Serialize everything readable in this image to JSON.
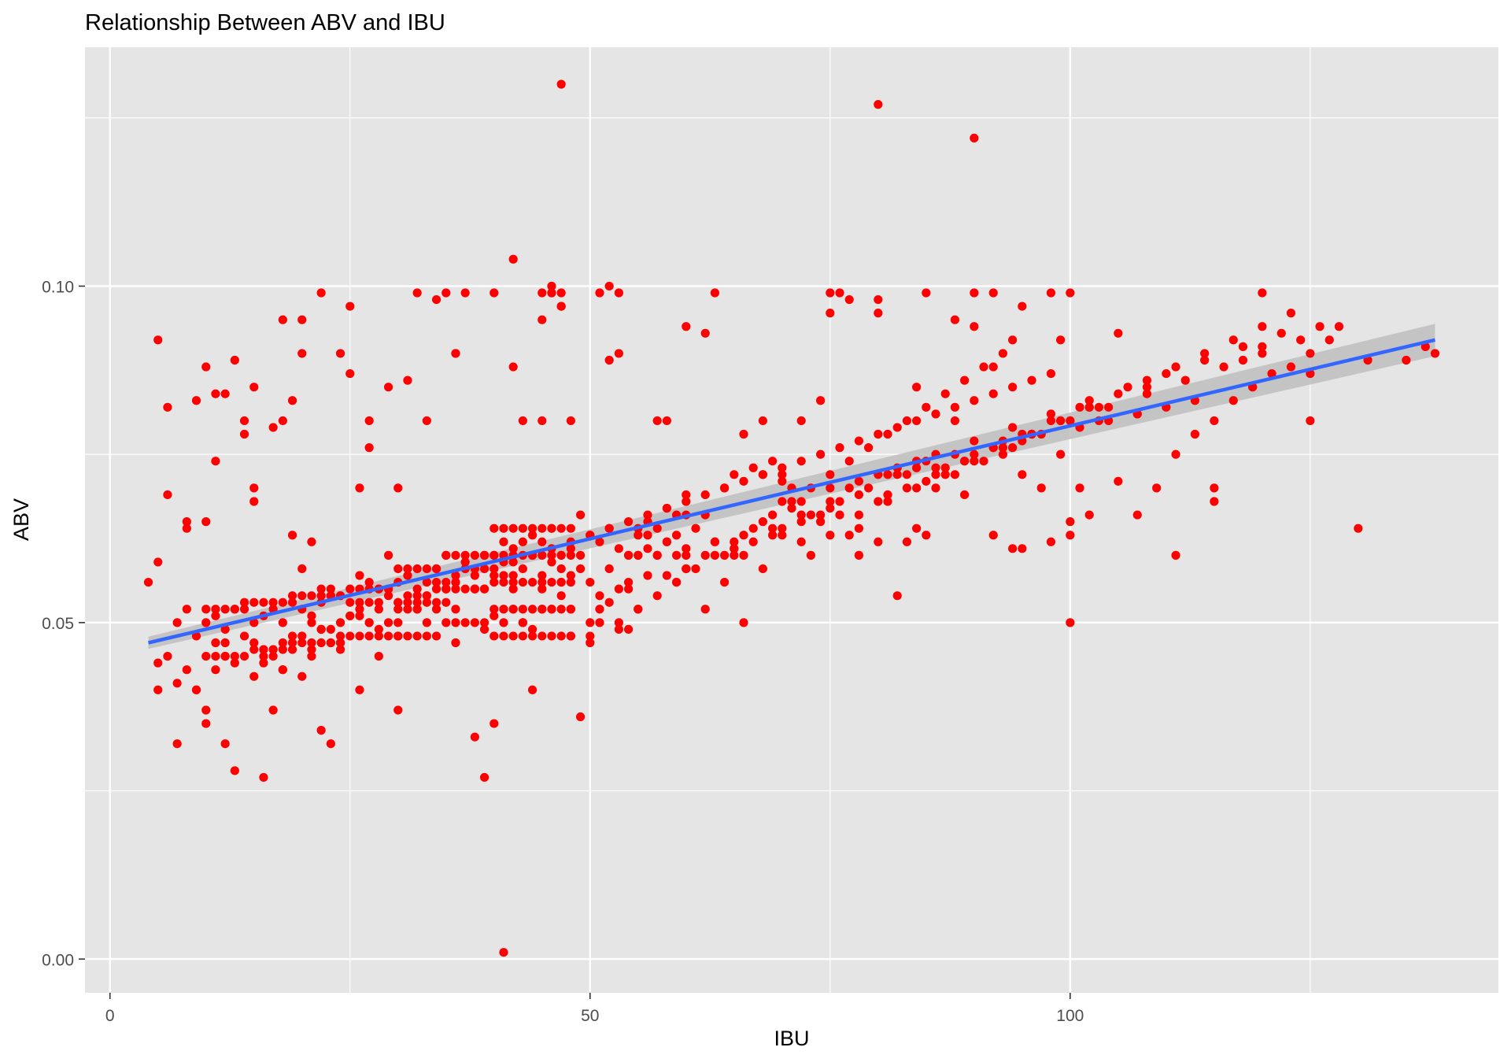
{
  "chart_data": {
    "type": "scatter",
    "title": "Relationship Between ABV and IBU",
    "xlabel": "IBU",
    "ylabel": "ABV",
    "xlim": [
      -2.6,
      144.6
    ],
    "ylim": [
      -0.005,
      0.1355
    ],
    "x_ticks": [
      0,
      50,
      100
    ],
    "x_tick_labels": [
      "0",
      "50",
      "100"
    ],
    "y_ticks": [
      0.0,
      0.05,
      0.1
    ],
    "y_tick_labels": [
      "0.00",
      "0.05",
      "0.10"
    ],
    "grid": true,
    "legend": "none",
    "colors": {
      "panel_bg": "#e5e5e5",
      "grid": "#ffffff",
      "points": "#ff0000",
      "trend_line": "#3366ff",
      "confidence_band": "#bebebe"
    },
    "trend_line": {
      "method": "lm",
      "x": [
        4,
        138
      ],
      "y": [
        0.047,
        0.092
      ],
      "ci_halfwidth": [
        0.0009,
        0.0024
      ]
    },
    "points": {
      "x": [
        4,
        5,
        5,
        5,
        6,
        7,
        8,
        9,
        10,
        10,
        11,
        11,
        12,
        13,
        14,
        15,
        15,
        16,
        17,
        18,
        18,
        19,
        19,
        20,
        20,
        21,
        22,
        22,
        23,
        24,
        25,
        25,
        26,
        26,
        27,
        27,
        28,
        29,
        30,
        30,
        31,
        32,
        33,
        34,
        35,
        35,
        36,
        36,
        37,
        38,
        38,
        39,
        40,
        40,
        41,
        42,
        42,
        43,
        43,
        44,
        45,
        45,
        46,
        46,
        47,
        47,
        47,
        48,
        49,
        50,
        50,
        51,
        52,
        53,
        54,
        55,
        55,
        56,
        57,
        58,
        59,
        60,
        60,
        62,
        63,
        64,
        65,
        66,
        67,
        68,
        69,
        70,
        70,
        72,
        73,
        74,
        75,
        75,
        76,
        78,
        80,
        80,
        81,
        82,
        83,
        84,
        85,
        85,
        86,
        88,
        89,
        90,
        90,
        92,
        93,
        94,
        95,
        98,
        99,
        100,
        100,
        100,
        102,
        105,
        108,
        110,
        111,
        115,
        115,
        118,
        120,
        120,
        125,
        130,
        135,
        138,
        5,
        6,
        7,
        8,
        9,
        10,
        11,
        12,
        13,
        14,
        15,
        16,
        17,
        18,
        19,
        20,
        21,
        22,
        23,
        24,
        25,
        26,
        27,
        28,
        29,
        30,
        31,
        32,
        33,
        34,
        35,
        36,
        37,
        38,
        39,
        40,
        41,
        42,
        43,
        44,
        45,
        46,
        47,
        48,
        49,
        50,
        51,
        52,
        53,
        54,
        55,
        56,
        57,
        58,
        59,
        60,
        8,
        10,
        12,
        14,
        16,
        18,
        20,
        22,
        24,
        26,
        28,
        30,
        32,
        34,
        36,
        38,
        40,
        42,
        44,
        46,
        48,
        50,
        52,
        54,
        56,
        58,
        60,
        62,
        64,
        66,
        68,
        70,
        72,
        74,
        76,
        78,
        80,
        82,
        84,
        86,
        88,
        90,
        92,
        94,
        96,
        98,
        10,
        13,
        16,
        19,
        22,
        25,
        28,
        31,
        34,
        37,
        40,
        43,
        46,
        49,
        52,
        55,
        58,
        61,
        64,
        67,
        70,
        73,
        76,
        79,
        82,
        85,
        88,
        91,
        94,
        97,
        100,
        103,
        12,
        15,
        18,
        21,
        24,
        27,
        30,
        33,
        36,
        39,
        42,
        45,
        48,
        51,
        54,
        57,
        60,
        63,
        66,
        69,
        72,
        75,
        78,
        81,
        84,
        87,
        90,
        93,
        96,
        99,
        102,
        14,
        17,
        20,
        23,
        26,
        29,
        32,
        35,
        38,
        41,
        44,
        47,
        50,
        53,
        56,
        59,
        62,
        65,
        68,
        71,
        74,
        77,
        80,
        83,
        86,
        89,
        92,
        95,
        98,
        101,
        104,
        107,
        9,
        11,
        13,
        15,
        17,
        19,
        21,
        23,
        25,
        27,
        29,
        31,
        33,
        35,
        37,
        39,
        41,
        43,
        45,
        47,
        49,
        51,
        53,
        55,
        57,
        59,
        61,
        63,
        65,
        67,
        69,
        71,
        73,
        75,
        77,
        79,
        81,
        83,
        85,
        87,
        89,
        91,
        93,
        95,
        97,
        99,
        101,
        103,
        105,
        107,
        109,
        111,
        113,
        115,
        117,
        119,
        121,
        123,
        125,
        127,
        7,
        8,
        9,
        12,
        15,
        18,
        21,
        24,
        27,
        30,
        33,
        36,
        39,
        42,
        45,
        48,
        51,
        54,
        57,
        60,
        63,
        66,
        69,
        72,
        75,
        78,
        81,
        84,
        87,
        90,
        93,
        96,
        99,
        102,
        105,
        108,
        111,
        114,
        117,
        120,
        123,
        126,
        16,
        20,
        24,
        28,
        32,
        36,
        40,
        44,
        48,
        52,
        56,
        60,
        64,
        68,
        72,
        76,
        80,
        84,
        88,
        92,
        96,
        100,
        104,
        108,
        112,
        116,
        120,
        124,
        128,
        6,
        11,
        17,
        23,
        29,
        35,
        41,
        47,
        53,
        59,
        65,
        71,
        77,
        83,
        89,
        95,
        101,
        107,
        113,
        119,
        125,
        131,
        137,
        22,
        26,
        30,
        34,
        38,
        42,
        46,
        50,
        54,
        58,
        62,
        66,
        70,
        74,
        78,
        82,
        86,
        90,
        94,
        98,
        102,
        106,
        110,
        114,
        118,
        122,
        40,
        41,
        42,
        43,
        44,
        45,
        46,
        47,
        48,
        40,
        41,
        42,
        43,
        44,
        45,
        46,
        47,
        48,
        40,
        41,
        42,
        43,
        44,
        45,
        46,
        47,
        48,
        40,
        41,
        42,
        43,
        44,
        45,
        46,
        47,
        48,
        40,
        41,
        42,
        43,
        44,
        45,
        46,
        47,
        48,
        35,
        36,
        37,
        38,
        39,
        35,
        36,
        37,
        38,
        39,
        35,
        36,
        37,
        38,
        39,
        30,
        31,
        32,
        33,
        34,
        30,
        31,
        32,
        33,
        34,
        30,
        31,
        32,
        33,
        34,
        25,
        26,
        27,
        28,
        29,
        25,
        26,
        27,
        28,
        29,
        20,
        21,
        22,
        23,
        24,
        20,
        21,
        22,
        23,
        24,
        15,
        16,
        17,
        18,
        19,
        15,
        16,
        17,
        18,
        19,
        10,
        11,
        12,
        13,
        14,
        10,
        11,
        12,
        13,
        14,
        47,
        46,
        45,
        52,
        53,
        75,
        77,
        80,
        85,
        88,
        90,
        92,
        65,
        70,
        60,
        75,
        78,
        80,
        72,
        68,
        62,
        58,
        55,
        100,
        98,
        92,
        95,
        94,
        86,
        84
      ],
      "y": [
        0.056,
        0.044,
        0.04,
        0.092,
        0.069,
        0.032,
        0.065,
        0.04,
        0.037,
        0.035,
        0.047,
        0.074,
        0.032,
        0.028,
        0.078,
        0.068,
        0.07,
        0.027,
        0.037,
        0.095,
        0.08,
        0.083,
        0.063,
        0.09,
        0.095,
        0.062,
        0.099,
        0.034,
        0.032,
        0.09,
        0.087,
        0.097,
        0.04,
        0.07,
        0.08,
        0.076,
        0.045,
        0.085,
        0.07,
        0.037,
        0.086,
        0.099,
        0.08,
        0.098,
        0.099,
        0.06,
        0.09,
        0.09,
        0.099,
        0.055,
        0.033,
        0.027,
        0.099,
        0.035,
        0.001,
        0.104,
        0.088,
        0.05,
        0.08,
        0.04,
        0.099,
        0.095,
        0.099,
        0.1,
        0.097,
        0.097,
        0.099,
        0.08,
        0.036,
        0.05,
        0.047,
        0.099,
        0.089,
        0.09,
        0.049,
        0.052,
        0.06,
        0.061,
        0.08,
        0.08,
        0.066,
        0.094,
        0.061,
        0.093,
        0.099,
        0.07,
        0.061,
        0.078,
        0.073,
        0.08,
        0.074,
        0.063,
        0.071,
        0.08,
        0.06,
        0.083,
        0.096,
        0.067,
        0.099,
        0.06,
        0.098,
        0.096,
        0.069,
        0.054,
        0.062,
        0.064,
        0.063,
        0.071,
        0.07,
        0.08,
        0.069,
        0.094,
        0.099,
        0.088,
        0.075,
        0.092,
        0.097,
        0.099,
        0.092,
        0.099,
        0.05,
        0.063,
        0.066,
        0.093,
        0.085,
        0.082,
        0.06,
        0.07,
        0.068,
        0.089,
        0.091,
        0.099,
        0.08,
        0.064,
        0.089,
        0.09,
        0.059,
        0.082,
        0.05,
        0.052,
        0.048,
        0.05,
        0.051,
        0.049,
        0.052,
        0.053,
        0.05,
        0.051,
        0.052,
        0.05,
        0.054,
        0.052,
        0.051,
        0.053,
        0.055,
        0.054,
        0.053,
        0.052,
        0.056,
        0.055,
        0.054,
        0.056,
        0.057,
        0.055,
        0.056,
        0.058,
        0.055,
        0.057,
        0.059,
        0.058,
        0.06,
        0.057,
        0.059,
        0.061,
        0.058,
        0.06,
        0.062,
        0.059,
        0.058,
        0.061,
        0.06,
        0.063,
        0.062,
        0.064,
        0.061,
        0.06,
        0.063,
        0.065,
        0.064,
        0.062,
        0.063,
        0.066,
        0.064,
        0.065,
        0.047,
        0.048,
        0.046,
        0.047,
        0.048,
        0.049,
        0.05,
        0.051,
        0.052,
        0.053,
        0.054,
        0.055,
        0.056,
        0.057,
        0.058,
        0.059,
        0.06,
        0.061,
        0.062,
        0.063,
        0.064,
        0.065,
        0.066,
        0.067,
        0.068,
        0.069,
        0.07,
        0.071,
        0.072,
        0.073,
        0.074,
        0.075,
        0.076,
        0.077,
        0.078,
        0.079,
        0.08,
        0.081,
        0.082,
        0.083,
        0.084,
        0.085,
        0.086,
        0.087,
        0.088,
        0.089,
        0.045,
        0.047,
        0.049,
        0.051,
        0.053,
        0.054,
        0.056,
        0.058,
        0.06,
        0.062,
        0.064,
        0.066,
        0.058,
        0.06,
        0.062,
        0.064,
        0.06,
        0.062,
        0.064,
        0.066,
        0.068,
        0.07,
        0.072,
        0.074,
        0.072,
        0.074,
        0.076,
        0.078,
        0.08,
        0.082,
        0.084,
        0.085,
        0.043,
        0.045,
        0.048,
        0.05,
        0.052,
        0.054,
        0.056,
        0.058,
        0.055,
        0.057,
        0.052,
        0.054,
        0.055,
        0.06,
        0.06,
        0.062,
        0.05,
        0.064,
        0.068,
        0.07,
        0.071,
        0.072,
        0.074,
        0.073,
        0.075,
        0.077,
        0.078,
        0.08,
        0.082,
        0.08,
        0.079,
        0.058,
        0.054,
        0.057,
        0.06,
        0.052,
        0.055,
        0.058,
        0.062,
        0.063,
        0.056,
        0.048,
        0.05,
        0.063,
        0.06,
        0.052,
        0.06,
        0.065,
        0.07,
        0.066,
        0.063,
        0.068,
        0.07,
        0.072,
        0.074,
        0.076,
        0.078,
        0.08,
        0.082,
        0.08,
        0.081,
        0.083,
        0.084,
        0.044,
        0.042,
        0.046,
        0.048,
        0.05,
        0.049,
        0.051,
        0.053,
        0.055,
        0.052,
        0.054,
        0.056,
        0.058,
        0.055,
        0.057,
        0.05,
        0.052,
        0.06,
        0.058,
        0.05,
        0.049,
        0.052,
        0.054,
        0.056,
        0.058,
        0.06,
        0.062,
        0.064,
        0.066,
        0.068,
        0.07,
        0.072,
        0.074,
        0.076,
        0.078,
        0.08,
        0.082,
        0.084,
        0.086,
        0.088,
        0.09,
        0.072,
        0.07,
        0.075,
        0.07,
        0.08,
        0.071,
        0.066,
        0.07,
        0.075,
        0.078,
        0.08,
        0.083,
        0.085,
        0.087,
        0.088,
        0.09,
        0.092,
        0.041,
        0.043,
        0.04,
        0.045,
        0.047,
        0.043,
        0.046,
        0.047,
        0.05,
        0.048,
        0.05,
        0.052,
        0.049,
        0.052,
        0.055,
        0.057,
        0.052,
        0.056,
        0.06,
        0.058,
        0.062,
        0.06,
        0.063,
        0.066,
        0.068,
        0.066,
        0.068,
        0.07,
        0.072,
        0.074,
        0.076,
        0.078,
        0.08,
        0.082,
        0.084,
        0.086,
        0.088,
        0.09,
        0.092,
        0.094,
        0.096,
        0.094,
        0.044,
        0.042,
        0.046,
        0.049,
        0.052,
        0.047,
        0.051,
        0.049,
        0.048,
        0.053,
        0.057,
        0.058,
        0.056,
        0.058,
        0.062,
        0.066,
        0.072,
        0.073,
        0.075,
        0.076,
        0.078,
        0.08,
        0.082,
        0.084,
        0.086,
        0.088,
        0.09,
        0.092,
        0.094,
        0.045,
        0.043,
        0.045,
        0.047,
        0.05,
        0.053,
        0.05,
        0.054,
        0.055,
        0.056,
        0.061,
        0.067,
        0.07,
        0.072,
        0.074,
        0.077,
        0.079,
        0.081,
        0.083,
        0.085,
        0.087,
        0.089,
        0.091,
        0.055,
        0.053,
        0.05,
        0.052,
        0.055,
        0.057,
        0.052,
        0.056,
        0.06,
        0.057,
        0.06,
        0.063,
        0.068,
        0.065,
        0.069,
        0.073,
        0.075,
        0.077,
        0.079,
        0.081,
        0.083,
        0.085,
        0.087,
        0.089,
        0.091,
        0.093,
        0.048,
        0.048,
        0.048,
        0.048,
        0.048,
        0.048,
        0.048,
        0.048,
        0.048,
        0.052,
        0.052,
        0.052,
        0.052,
        0.052,
        0.052,
        0.052,
        0.052,
        0.052,
        0.056,
        0.056,
        0.056,
        0.056,
        0.056,
        0.056,
        0.056,
        0.056,
        0.056,
        0.06,
        0.06,
        0.06,
        0.06,
        0.06,
        0.06,
        0.06,
        0.06,
        0.06,
        0.064,
        0.064,
        0.064,
        0.064,
        0.064,
        0.064,
        0.064,
        0.064,
        0.064,
        0.05,
        0.05,
        0.05,
        0.05,
        0.05,
        0.055,
        0.055,
        0.055,
        0.055,
        0.055,
        0.06,
        0.06,
        0.06,
        0.06,
        0.06,
        0.048,
        0.048,
        0.048,
        0.048,
        0.048,
        0.053,
        0.053,
        0.053,
        0.053,
        0.053,
        0.058,
        0.058,
        0.058,
        0.058,
        0.058,
        0.048,
        0.048,
        0.048,
        0.048,
        0.048,
        0.055,
        0.055,
        0.055,
        0.055,
        0.055,
        0.047,
        0.047,
        0.047,
        0.047,
        0.047,
        0.054,
        0.054,
        0.054,
        0.054,
        0.054,
        0.046,
        0.046,
        0.046,
        0.046,
        0.046,
        0.053,
        0.053,
        0.053,
        0.053,
        0.053,
        0.045,
        0.045,
        0.045,
        0.045,
        0.045,
        0.052,
        0.052,
        0.052,
        0.052,
        0.052,
        0.13,
        0.099,
        0.08,
        0.1,
        0.099,
        0.099,
        0.098,
        0.127,
        0.099,
        0.095,
        0.122,
        0.099,
        0.072,
        0.072,
        0.069,
        0.063,
        0.064,
        0.062,
        0.065,
        0.072,
        0.066,
        0.067,
        0.064,
        0.065,
        0.062,
        0.063,
        0.061,
        0.061,
        0.073,
        0.085
      ]
    }
  }
}
